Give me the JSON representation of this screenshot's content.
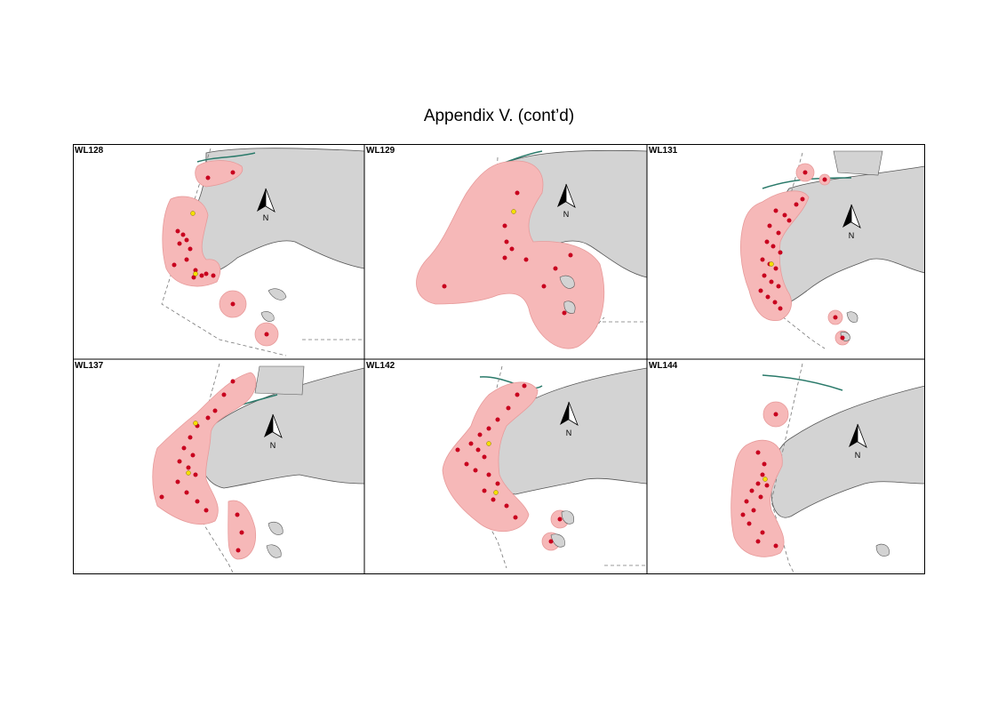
{
  "title": "Appendix V.  (cont’d)",
  "north_label": "N",
  "colors": {
    "land": "#d3d3d3",
    "coast": "#555555",
    "range": "#f6b8b8",
    "range_edge": "#e79a9a",
    "point_red": "#c8001e",
    "point_yellow": "#f5e000",
    "track": "#2a7a6a",
    "border": "#000000"
  },
  "panels": [
    {
      "id": "WL128",
      "label": "WL128"
    },
    {
      "id": "WL129",
      "label": "WL129"
    },
    {
      "id": "WL131",
      "label": "WL131"
    },
    {
      "id": "WL137",
      "label": "WL137"
    },
    {
      "id": "WL142",
      "label": "WL142"
    },
    {
      "id": "WL144",
      "label": "WL144"
    }
  ]
}
